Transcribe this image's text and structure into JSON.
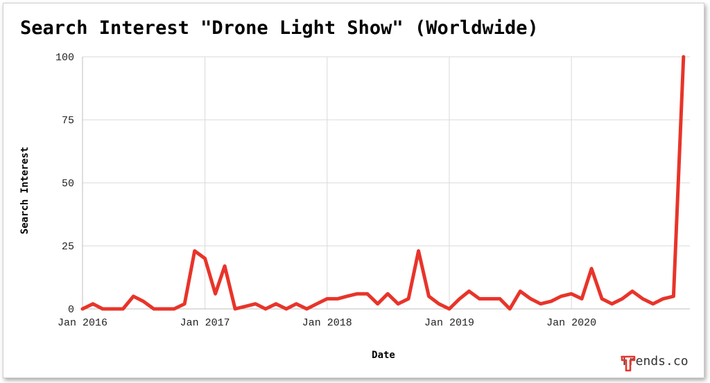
{
  "chart_data": {
    "type": "line",
    "title": "Search Interest \"Drone Light Show\" (Worldwide)",
    "xlabel": "Date",
    "ylabel": "Search Interest",
    "ylim": [
      0,
      100
    ],
    "yticks": [
      0,
      25,
      50,
      75,
      100
    ],
    "xlim": [
      "2016-01-01",
      "2020-12-20"
    ],
    "xticks": [
      {
        "date": "2016-01-01",
        "label": "Jan 2016"
      },
      {
        "date": "2017-01-01",
        "label": "Jan 2017"
      },
      {
        "date": "2018-01-01",
        "label": "Jan 2018"
      },
      {
        "date": "2019-01-01",
        "label": "Jan 2019"
      },
      {
        "date": "2020-01-01",
        "label": "Jan 2020"
      }
    ],
    "grid": true,
    "line_color": "#e8342a",
    "series": [
      {
        "x": [
          "2016-01-01",
          "2016-02-01",
          "2016-03-01",
          "2016-04-01",
          "2016-05-01",
          "2016-06-01",
          "2016-07-01",
          "2016-08-01",
          "2016-09-01",
          "2016-10-01",
          "2016-11-01",
          "2016-12-01",
          "2017-01-01",
          "2017-02-01",
          "2017-03-01",
          "2017-04-01",
          "2017-05-01",
          "2017-06-01",
          "2017-07-01",
          "2017-08-01",
          "2017-09-01",
          "2017-10-01",
          "2017-11-01",
          "2017-12-01",
          "2018-01-01",
          "2018-02-01",
          "2018-03-01",
          "2018-04-01",
          "2018-05-01",
          "2018-06-01",
          "2018-07-01",
          "2018-08-01",
          "2018-09-01",
          "2018-10-01",
          "2018-11-01",
          "2018-12-01",
          "2019-01-01",
          "2019-02-01",
          "2019-03-01",
          "2019-04-01",
          "2019-05-01",
          "2019-06-01",
          "2019-07-01",
          "2019-08-01",
          "2019-09-01",
          "2019-10-01",
          "2019-11-01",
          "2019-12-01",
          "2020-01-01",
          "2020-02-01",
          "2020-03-01",
          "2020-04-01",
          "2020-05-01",
          "2020-06-01",
          "2020-07-01",
          "2020-08-01",
          "2020-09-01",
          "2020-10-01",
          "2020-11-01",
          "2020-12-01"
        ],
        "values": [
          0,
          2,
          0,
          0,
          0,
          5,
          3,
          0,
          0,
          0,
          2,
          23,
          20,
          6,
          17,
          0,
          1,
          2,
          0,
          2,
          0,
          2,
          0,
          2,
          4,
          4,
          5,
          6,
          6,
          2,
          6,
          2,
          4,
          23,
          5,
          2,
          0,
          4,
          7,
          4,
          4,
          4,
          0,
          7,
          4,
          2,
          3,
          5,
          6,
          4,
          16,
          4,
          2,
          4,
          7,
          4,
          2,
          4,
          5,
          100
        ]
      }
    ]
  },
  "brand": {
    "name": "Trends.co",
    "icon": "trends-logo-icon",
    "color": "#e8342a"
  }
}
